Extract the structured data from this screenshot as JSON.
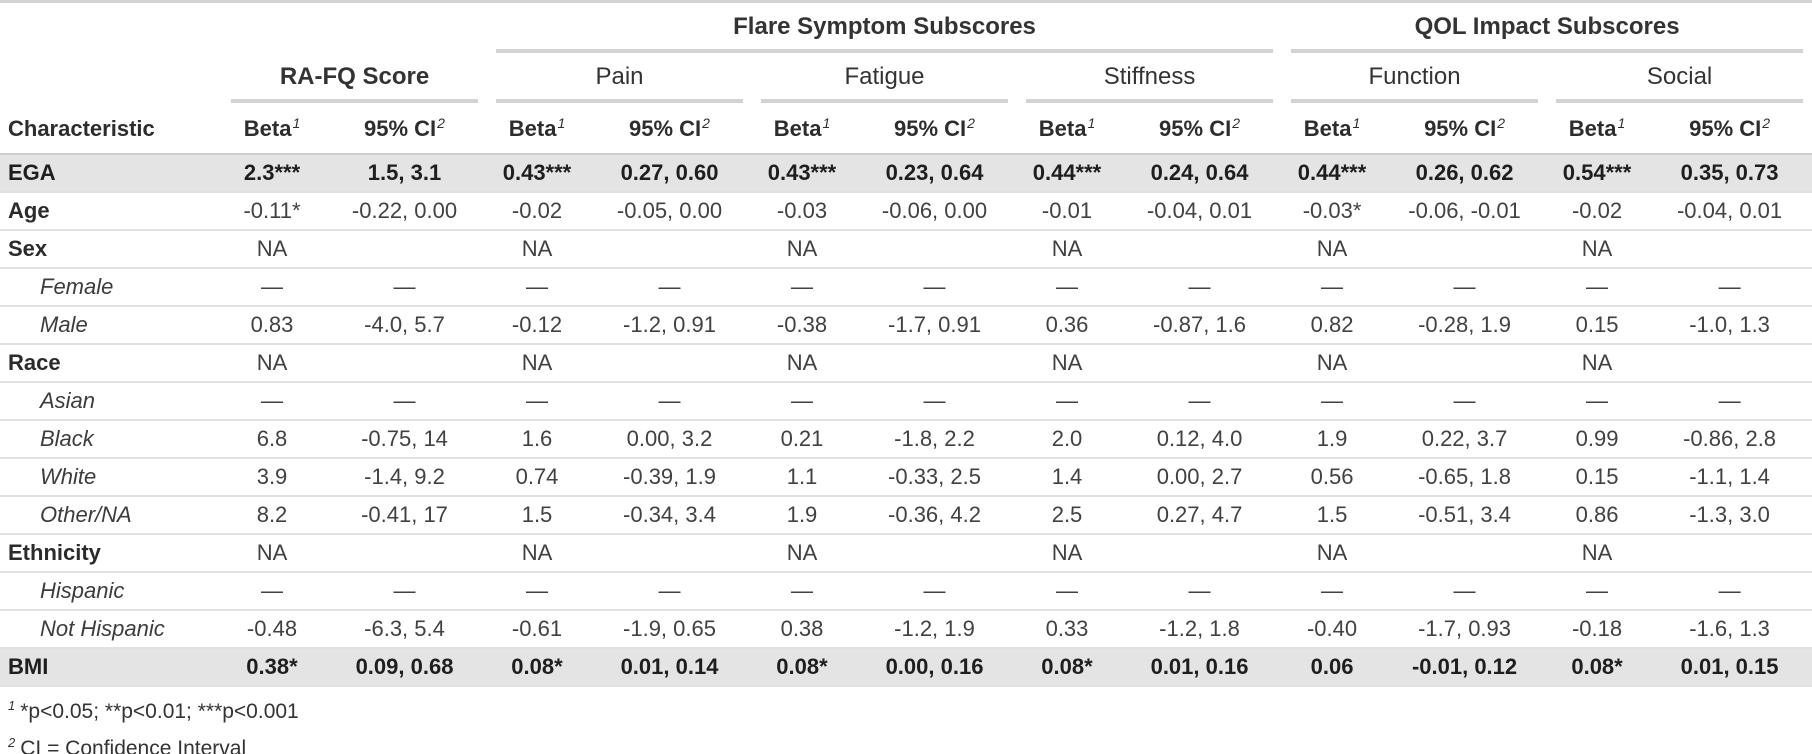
{
  "table": {
    "spanners_top": {
      "flare": "Flare Symptom Subscores",
      "qol": "QOL Impact Subscores"
    },
    "groups": [
      {
        "label": "RA-FQ Score",
        "bold": true
      },
      {
        "label": "Pain",
        "bold": false
      },
      {
        "label": "Fatigue",
        "bold": false
      },
      {
        "label": "Stiffness",
        "bold": false
      },
      {
        "label": "Function",
        "bold": false
      },
      {
        "label": "Social",
        "bold": false
      }
    ],
    "characteristic_header": "Characteristic",
    "beta_header": {
      "label": "Beta",
      "sup": "1"
    },
    "ci_header": {
      "label": "95% CI",
      "sup": "2"
    },
    "rows": [
      {
        "label": "EGA",
        "style": "highlight",
        "values": [
          "2.3***",
          "1.5, 3.1",
          "0.43***",
          "0.27, 0.60",
          "0.43***",
          "0.23, 0.64",
          "0.44***",
          "0.24, 0.64",
          "0.44***",
          "0.26, 0.62",
          "0.54***",
          "0.35, 0.73"
        ]
      },
      {
        "label": "Age",
        "style": "group",
        "values": [
          "-0.11*",
          "-0.22, 0.00",
          "-0.02",
          "-0.05, 0.00",
          "-0.03",
          "-0.06, 0.00",
          "-0.01",
          "-0.04, 0.01",
          "-0.03*",
          "-0.06, -0.01",
          "-0.02",
          "-0.04, 0.01"
        ]
      },
      {
        "label": "Sex",
        "style": "group",
        "values": [
          "NA",
          "",
          "NA",
          "",
          "NA",
          "",
          "NA",
          "",
          "NA",
          "",
          "NA",
          ""
        ]
      },
      {
        "label": "Female",
        "style": "sub",
        "values": [
          "—",
          "—",
          "—",
          "—",
          "—",
          "—",
          "—",
          "—",
          "—",
          "—",
          "—",
          "—"
        ]
      },
      {
        "label": "Male",
        "style": "sub",
        "values": [
          "0.83",
          "-4.0, 5.7",
          "-0.12",
          "-1.2, 0.91",
          "-0.38",
          "-1.7, 0.91",
          "0.36",
          "-0.87, 1.6",
          "0.82",
          "-0.28, 1.9",
          "0.15",
          "-1.0, 1.3"
        ]
      },
      {
        "label": "Race",
        "style": "group",
        "values": [
          "NA",
          "",
          "NA",
          "",
          "NA",
          "",
          "NA",
          "",
          "NA",
          "",
          "NA",
          ""
        ]
      },
      {
        "label": "Asian",
        "style": "sub",
        "values": [
          "—",
          "—",
          "—",
          "—",
          "—",
          "—",
          "—",
          "—",
          "—",
          "—",
          "—",
          "—"
        ]
      },
      {
        "label": "Black",
        "style": "sub",
        "values": [
          "6.8",
          "-0.75, 14",
          "1.6",
          "0.00, 3.2",
          "0.21",
          "-1.8, 2.2",
          "2.0",
          "0.12, 4.0",
          "1.9",
          "0.22, 3.7",
          "0.99",
          "-0.86, 2.8"
        ]
      },
      {
        "label": "White",
        "style": "sub",
        "values": [
          "3.9",
          "-1.4, 9.2",
          "0.74",
          "-0.39, 1.9",
          "1.1",
          "-0.33, 2.5",
          "1.4",
          "0.00, 2.7",
          "0.56",
          "-0.65, 1.8",
          "0.15",
          "-1.1, 1.4"
        ]
      },
      {
        "label": "Other/NA",
        "style": "sub",
        "values": [
          "8.2",
          "-0.41, 17",
          "1.5",
          "-0.34, 3.4",
          "1.9",
          "-0.36, 4.2",
          "2.5",
          "0.27, 4.7",
          "1.5",
          "-0.51, 3.4",
          "0.86",
          "-1.3, 3.0"
        ]
      },
      {
        "label": "Ethnicity",
        "style": "group",
        "values": [
          "NA",
          "",
          "NA",
          "",
          "NA",
          "",
          "NA",
          "",
          "NA",
          "",
          "NA",
          ""
        ]
      },
      {
        "label": "Hispanic",
        "style": "sub",
        "values": [
          "—",
          "—",
          "—",
          "—",
          "—",
          "—",
          "—",
          "—",
          "—",
          "—",
          "—",
          "—"
        ]
      },
      {
        "label": "Not Hispanic",
        "style": "sub",
        "values": [
          "-0.48",
          "-6.3, 5.4",
          "-0.61",
          "-1.9, 0.65",
          "0.38",
          "-1.2, 1.9",
          "0.33",
          "-1.2, 1.8",
          "-0.40",
          "-1.7, 0.93",
          "-0.18",
          "-1.6, 1.3"
        ]
      },
      {
        "label": "BMI",
        "style": "highlight",
        "values": [
          "0.38*",
          "0.09, 0.68",
          "0.08*",
          "0.01, 0.14",
          "0.08*",
          "0.00, 0.16",
          "0.08*",
          "0.01, 0.16",
          "0.06",
          "-0.01, 0.12",
          "0.08*",
          "0.01, 0.15"
        ]
      }
    ],
    "footnotes": [
      {
        "sup": "1",
        "text": "*p<0.05; **p<0.01; ***p<0.001"
      },
      {
        "sup": "2",
        "text": "CI = Confidence Interval"
      }
    ],
    "colors": {
      "highlight_bg": "#e4e4e4",
      "rule_light": "#e1e1e1",
      "rule_spanner": "#d3d3d3",
      "text": "#333333"
    }
  }
}
